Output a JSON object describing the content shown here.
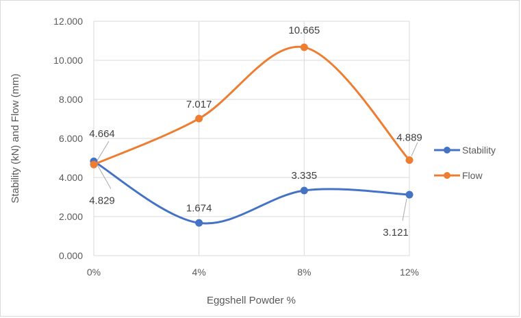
{
  "chart_data": {
    "type": "line",
    "smooth": true,
    "categories": [
      "0%",
      "4%",
      "8%",
      "12%"
    ],
    "series": [
      {
        "name": "Stability",
        "values": [
          4.829,
          1.674,
          3.335,
          3.121
        ],
        "color": "#4472c4"
      },
      {
        "name": "Flow",
        "values": [
          4.664,
          7.017,
          10.665,
          4.889
        ],
        "color": "#ed7d31"
      }
    ],
    "title": "",
    "xlabel": "Eggshell Powder %",
    "ylabel": "Stability (kN) and Flow (mm)",
    "ylim": [
      0,
      12
    ],
    "yticks": [
      "0.000",
      "2.000",
      "4.000",
      "6.000",
      "8.000",
      "10.000",
      "12.000"
    ],
    "data_labels": {
      "Stability": [
        "4.829",
        "1.674",
        "3.335",
        "3.121"
      ],
      "Flow": [
        "4.664",
        "7.017",
        "10.665",
        "4.889"
      ]
    },
    "grid": true,
    "legend_position": "right",
    "leader_line_color": "#a6a6a6",
    "gridline_color": "#d9d9d9"
  }
}
